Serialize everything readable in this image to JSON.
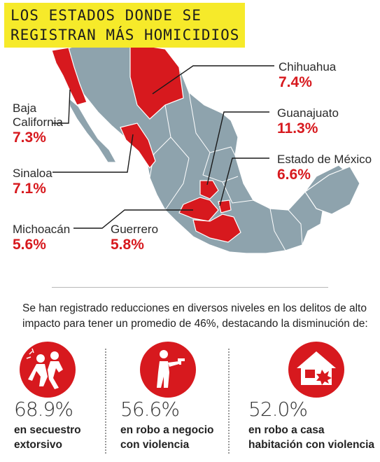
{
  "title": {
    "line1": "LOS ESTADOS DONDE SE",
    "line2": "REGISTRAN MÁS HOMICIDIOS"
  },
  "colors": {
    "highlight": "#d7191e",
    "map_base": "#8ea3ad",
    "title_bg": "#f6ea2a"
  },
  "states": [
    {
      "name": "Chihuahua",
      "pct": "7.4%"
    },
    {
      "name_line1": "Baja",
      "name_line2": "California",
      "pct": "7.3%"
    },
    {
      "name": "Guanajuato",
      "pct": "11.3%"
    },
    {
      "name": "Estado de México",
      "pct": "6.6%"
    },
    {
      "name": "Sinaloa",
      "pct": "7.1%"
    },
    {
      "name": "Michoacán",
      "pct": "5.6%"
    },
    {
      "name": "Guerrero",
      "pct": "5.8%"
    }
  ],
  "summary": "Se han registrado reducciones en diversos niveles en los delitos de alto impacto para tener un promedio de 46%, destacando la disminución de:",
  "stats": [
    {
      "icon": "kidnapping-icon",
      "value": "68.9%",
      "line1": "en secuestro",
      "line2": "extorsivo"
    },
    {
      "icon": "armed-robbery-icon",
      "value": "56.6%",
      "line1": "en robo a negocio",
      "line2": "con violencia"
    },
    {
      "icon": "house-robbery-icon",
      "value": "52.0%",
      "line1": "en robo a casa",
      "line2": "habitación con violencia"
    }
  ]
}
